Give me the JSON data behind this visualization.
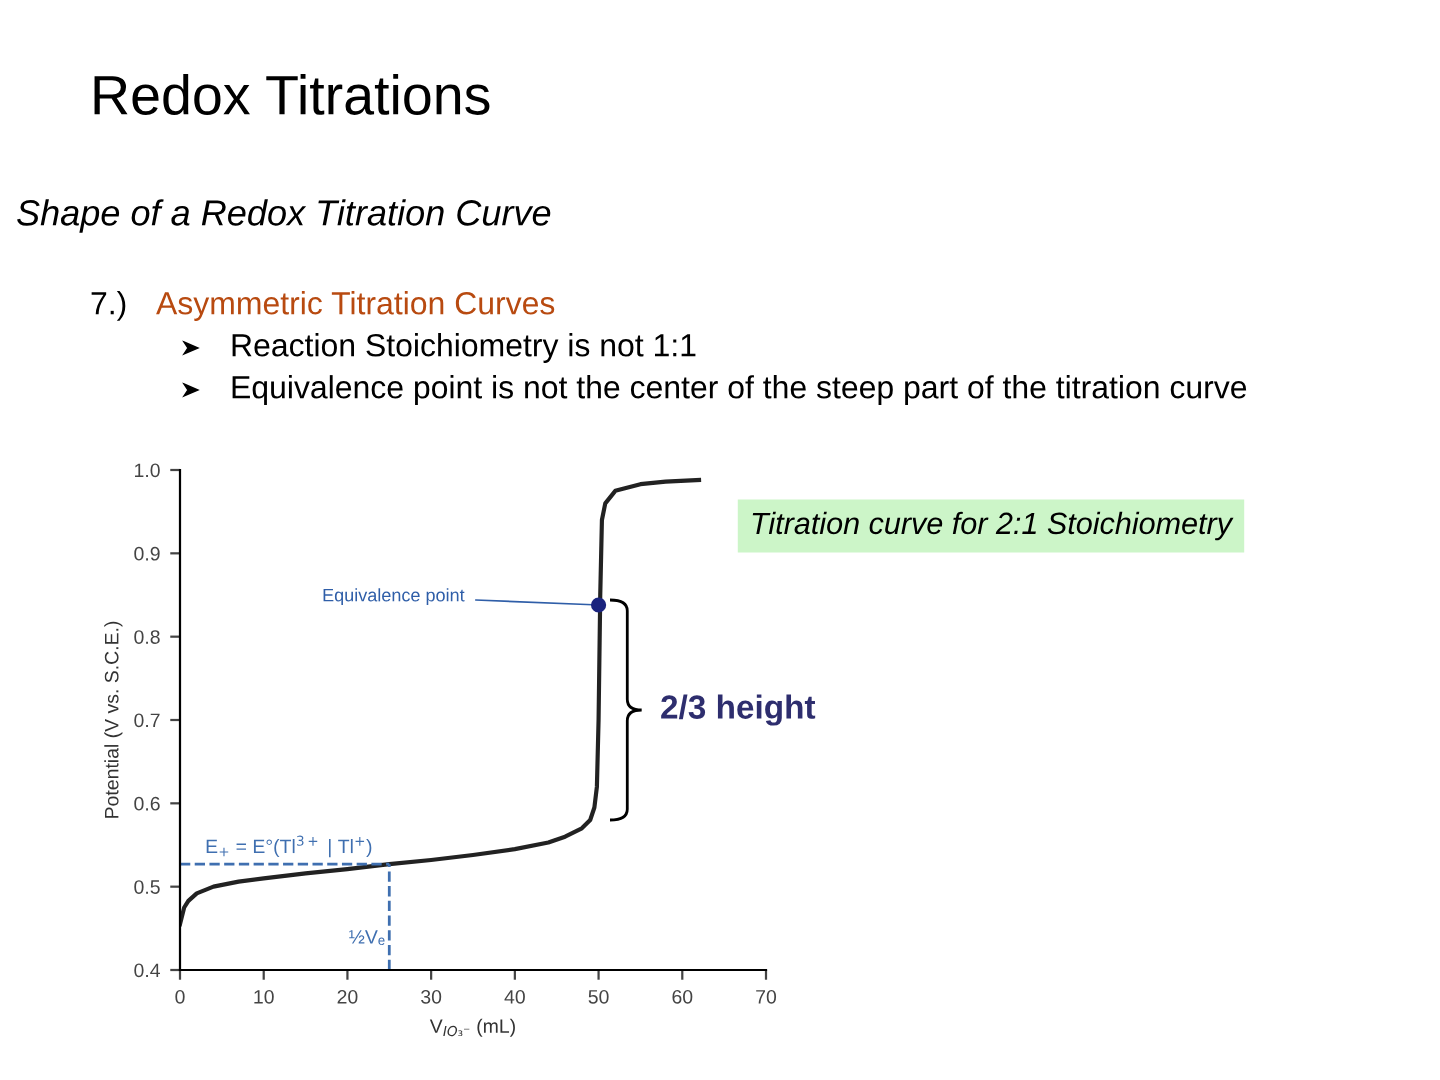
{
  "chart_data": {
    "type": "line",
    "title": "Redox Titrations",
    "subtitle": "Shape of a Redox Titration Curve",
    "xlabel": "V$_{IO₃⁻}$ (mL)",
    "ylabel": "Potential (V vs. S.C.E.)",
    "series": [
      {
        "color": "#222222",
        "x": [
          0,
          0.5,
          1,
          2,
          4,
          7,
          10,
          15,
          20,
          25,
          30,
          35,
          40,
          44,
          46,
          48,
          49,
          49.5,
          49.8,
          50,
          50.2,
          50.4,
          50.8,
          52,
          55,
          58,
          62
        ],
        "values": [
          0.455,
          0.475,
          0.483,
          0.492,
          0.5,
          0.506,
          0.51,
          0.516,
          0.521,
          0.527,
          0.532,
          0.538,
          0.545,
          0.553,
          0.56,
          0.57,
          0.58,
          0.595,
          0.62,
          0.7,
          0.85,
          0.94,
          0.96,
          0.975,
          0.983,
          0.986,
          0.988
        ]
      },
      {
        "type": "scatter",
        "color": "#1a237e",
        "x": [
          50
        ],
        "values": [
          0.838
        ]
      }
    ],
    "xlim": [
      0,
      70
    ],
    "ylim": [
      0.4,
      1.0
    ],
    "xticks": [
      0,
      10,
      20,
      30,
      40,
      50,
      60,
      70
    ],
    "yticks": [
      0.4,
      0.5,
      0.6,
      0.7,
      0.8,
      0.9,
      {
        "value": 1.0,
        "label": "1.0"
      }
    ],
    "ref_lines": [
      {
        "axis": "y",
        "value": 0.527,
        "label": "E$_{+}$ = E°(Tl$^{3+}$ | Tl$^{+}$)",
        "color": "#3f6fb0",
        "line_style": "dashed"
      },
      {
        "axis": "x",
        "value": 25,
        "label": "½Vₑ",
        "color": "#3f6fb0",
        "line_style": "dashed"
      }
    ],
    "annotations": [
      "7.) Asymmetric Titration Curves",
      "Reaction Stoichiometry is not 1:1",
      "Equivalence point is not the center of the steep part of the titration curve",
      {
        "text": "Equivalence point",
        "x": 50,
        "y": 0.838
      },
      "Titration curve for 2:1 Stoichiometry",
      "2/3 height"
    ],
    "grid": false,
    "legend": false
  }
}
